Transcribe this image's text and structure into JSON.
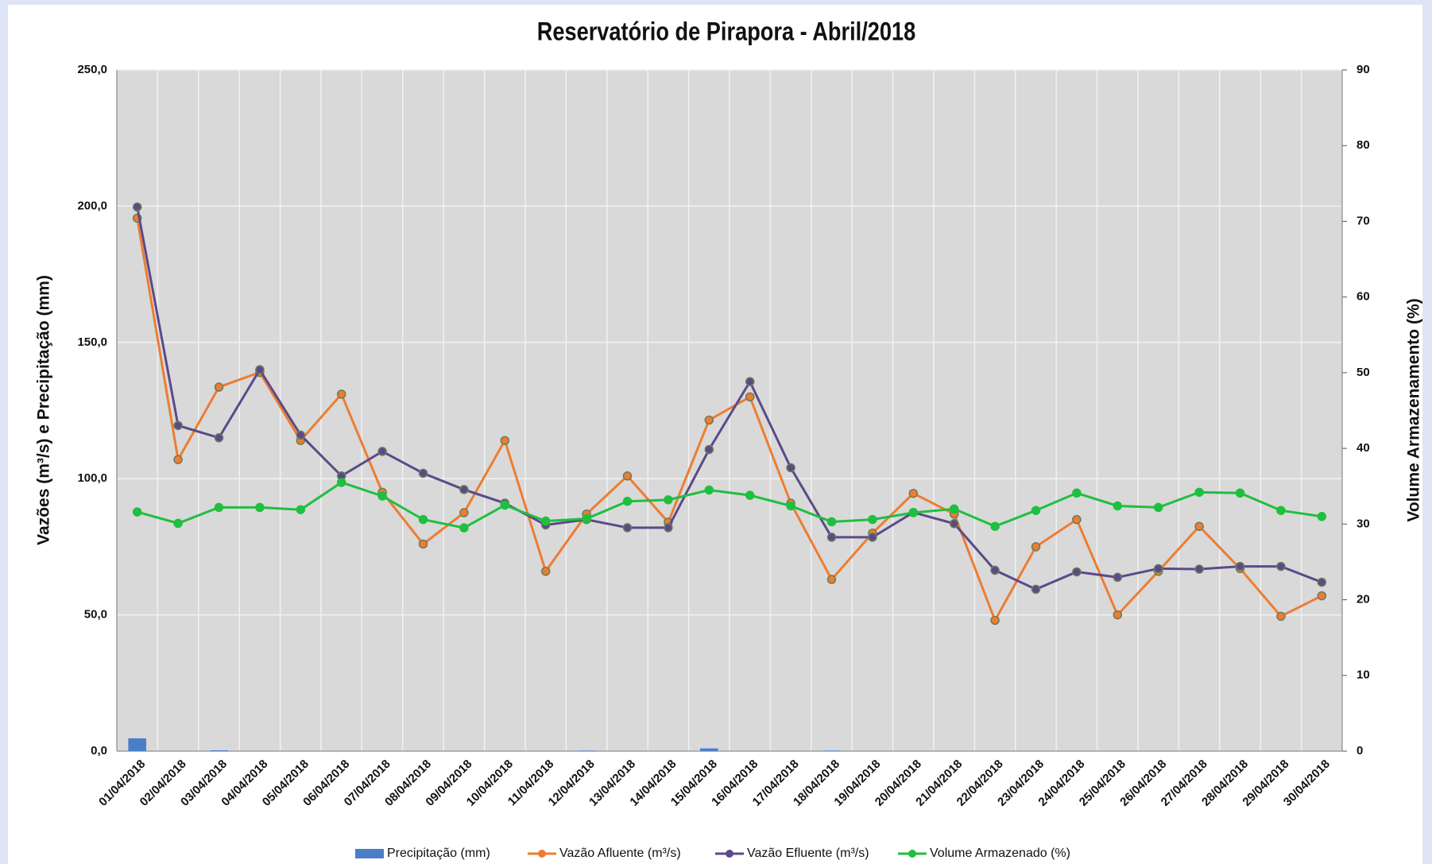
{
  "chart_data": {
    "type": "combo",
    "title": "Reservatório de Pirapora - Abril/2018",
    "y_label": "Vazões (m³/s) e Precipitação (mm)",
    "y2_label": "Volume Armazenamento (%)",
    "categories": [
      "01/04/2018",
      "02/04/2018",
      "03/04/2018",
      "04/04/2018",
      "05/04/2018",
      "06/04/2018",
      "07/04/2018",
      "08/04/2018",
      "09/04/2018",
      "10/04/2018",
      "11/04/2018",
      "12/04/2018",
      "13/04/2018",
      "14/04/2018",
      "15/04/2018",
      "16/04/2018",
      "17/04/2018",
      "18/04/2018",
      "19/04/2018",
      "20/04/2018",
      "21/04/2018",
      "22/04/2018",
      "23/04/2018",
      "24/04/2018",
      "25/04/2018",
      "26/04/2018",
      "27/04/2018",
      "28/04/2018",
      "29/04/2018",
      "30/04/2018"
    ],
    "ylim": [
      0,
      250
    ],
    "yticks": [
      {
        "value": 0,
        "label": "0,0"
      },
      {
        "value": 50,
        "label": "50,0"
      },
      {
        "value": 100,
        "label": "100,0"
      },
      {
        "value": 150,
        "label": "150,0"
      },
      {
        "value": 200,
        "label": "200,0"
      },
      {
        "value": 250,
        "label": "250,0"
      }
    ],
    "y2lim": [
      0,
      90
    ],
    "y2ticks": [
      0,
      10,
      20,
      30,
      40,
      50,
      60,
      70,
      80,
      90
    ],
    "grid": true,
    "legend": "bottom",
    "series": [
      {
        "name": "Precipitação (mm)",
        "type": "bar",
        "color": "#4a7fc8",
        "values": [
          4.7,
          0,
          0.3,
          0,
          0,
          0,
          0,
          0,
          0,
          0,
          0,
          0.2,
          0,
          0,
          1.0,
          0,
          0,
          0.2,
          0,
          0,
          0,
          0,
          0,
          0,
          0,
          0,
          0,
          0,
          0,
          0
        ]
      },
      {
        "name": "Vazão Afluente (m³/s)",
        "type": "line",
        "color": "#ed7d31",
        "values": [
          195.6,
          107,
          133.6,
          139,
          114,
          131,
          95,
          76,
          87.5,
          114,
          66,
          87,
          101,
          84,
          121.5,
          130,
          91,
          63,
          80,
          94.6,
          87,
          48,
          75,
          85,
          50,
          66,
          82.5,
          67,
          49.5,
          57
        ]
      },
      {
        "name": "Vazão Efluente (m³/s)",
        "type": "line",
        "color": "#5b4a8a",
        "values": [
          199.7,
          119.5,
          115,
          140,
          116,
          101,
          110,
          102,
          96,
          91,
          83,
          85,
          82,
          82,
          110.7,
          135.6,
          104,
          78.5,
          78.5,
          87.6,
          83.5,
          66.4,
          59.4,
          65.8,
          63.8,
          67,
          66.8,
          67.8,
          67.8,
          62
        ]
      },
      {
        "name": "Volume Armazenado (%)",
        "type": "line",
        "color": "#1fbf3f",
        "axis": "y2",
        "values": [
          31.6,
          30.1,
          32.2,
          32.2,
          31.9,
          35.5,
          33.7,
          30.6,
          29.5,
          32.5,
          30.4,
          30.7,
          33.0,
          33.2,
          34.5,
          33.8,
          32.4,
          30.3,
          30.6,
          31.5,
          32.0,
          29.7,
          31.8,
          34.1,
          32.4,
          32.2,
          34.2,
          34.1,
          31.8,
          31.0
        ]
      }
    ]
  }
}
